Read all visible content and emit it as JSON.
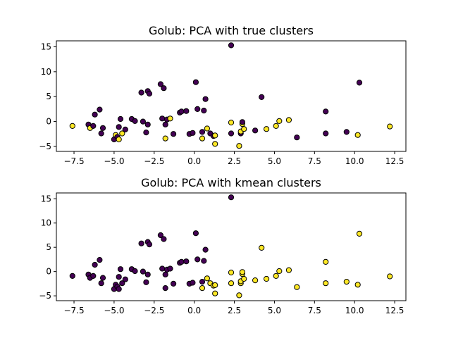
{
  "chart_data": [
    {
      "type": "scatter",
      "title": "Golub: PCA with true clusters",
      "xlabel": "",
      "ylabel": "",
      "xlim": [
        -8.6,
        13.2
      ],
      "ylim": [
        -6.0,
        16.2
      ],
      "xticks": [
        -7.5,
        -5.0,
        -2.5,
        0.0,
        2.5,
        5.0,
        7.5,
        10.0,
        12.5
      ],
      "xtick_labels": [
        "−7.5",
        "−5.0",
        "−2.5",
        "0.0",
        "2.5",
        "5.0",
        "7.5",
        "10.0",
        "12.5"
      ],
      "yticks": [
        -5,
        0,
        5,
        10,
        15
      ],
      "ytick_labels": [
        "−5",
        "0",
        "5",
        "10",
        "15"
      ],
      "grid": false,
      "colors": {
        "cluster_0": "#440154",
        "cluster_1": "#fde725"
      },
      "points": [
        [
          -7.6,
          -0.9,
          1
        ],
        [
          -6.6,
          -0.6,
          0
        ],
        [
          -6.5,
          -1.3,
          1
        ],
        [
          -6.3,
          -0.9,
          0
        ],
        [
          -6.2,
          1.4,
          0
        ],
        [
          -5.9,
          2.4,
          0
        ],
        [
          -5.8,
          -2.4,
          0
        ],
        [
          -5.7,
          -1.3,
          0
        ],
        [
          -5.0,
          -3.6,
          0
        ],
        [
          -4.9,
          -2.7,
          1
        ],
        [
          -4.8,
          -3.1,
          0
        ],
        [
          -4.7,
          -3.6,
          1
        ],
        [
          -4.7,
          -1.1,
          0
        ],
        [
          -4.6,
          0.5,
          0
        ],
        [
          -4.5,
          -2.4,
          1
        ],
        [
          -4.3,
          -1.6,
          0
        ],
        [
          -3.9,
          0.5,
          0
        ],
        [
          -3.7,
          0.1,
          0
        ],
        [
          -3.3,
          5.8,
          0
        ],
        [
          -3.2,
          0.0,
          0
        ],
        [
          -3.0,
          -2.2,
          0
        ],
        [
          -2.9,
          -0.6,
          0
        ],
        [
          -2.9,
          6.1,
          0
        ],
        [
          -2.8,
          5.6,
          0
        ],
        [
          -2.1,
          7.5,
          0
        ],
        [
          -2.0,
          0.6,
          0
        ],
        [
          -1.9,
          6.7,
          0
        ],
        [
          -1.8,
          -3.4,
          1
        ],
        [
          -1.8,
          -0.6,
          0
        ],
        [
          -1.7,
          0.4,
          0
        ],
        [
          -1.5,
          0.6,
          1
        ],
        [
          -1.3,
          -2.5,
          0
        ],
        [
          -0.9,
          1.8,
          0
        ],
        [
          -0.8,
          2.0,
          0
        ],
        [
          -0.5,
          2.1,
          0
        ],
        [
          -0.3,
          -2.5,
          0
        ],
        [
          -0.1,
          -2.3,
          0
        ],
        [
          0.1,
          7.9,
          0
        ],
        [
          0.2,
          2.5,
          0
        ],
        [
          0.5,
          -3.4,
          1
        ],
        [
          0.5,
          -2.1,
          0
        ],
        [
          0.6,
          2.2,
          0
        ],
        [
          0.7,
          4.5,
          0
        ],
        [
          0.8,
          -1.4,
          1
        ],
        [
          1.0,
          -2.4,
          0
        ],
        [
          1.2,
          -2.9,
          0
        ],
        [
          1.3,
          -2.8,
          1
        ],
        [
          1.3,
          -4.5,
          1
        ],
        [
          2.3,
          15.3,
          0
        ],
        [
          2.3,
          -0.2,
          1
        ],
        [
          2.3,
          -2.4,
          0
        ],
        [
          2.8,
          -4.9,
          1
        ],
        [
          2.9,
          -2.4,
          0
        ],
        [
          2.9,
          -2.0,
          1
        ],
        [
          3.0,
          -0.5,
          1
        ],
        [
          3.0,
          -0.1,
          0
        ],
        [
          3.1,
          -1.5,
          1
        ],
        [
          3.8,
          -1.8,
          0
        ],
        [
          4.2,
          4.9,
          0
        ],
        [
          4.5,
          -1.5,
          1
        ],
        [
          5.1,
          -0.9,
          1
        ],
        [
          5.3,
          0.1,
          1
        ],
        [
          5.9,
          0.3,
          1
        ],
        [
          6.4,
          -3.2,
          0
        ],
        [
          8.2,
          2.0,
          0
        ],
        [
          8.2,
          -2.4,
          0
        ],
        [
          9.5,
          -2.1,
          0
        ],
        [
          10.2,
          -2.7,
          1
        ],
        [
          10.3,
          7.8,
          0
        ],
        [
          12.2,
          -1.0,
          1
        ]
      ]
    },
    {
      "type": "scatter",
      "title": "Golub: PCA with kmean clusters",
      "xlabel": "",
      "ylabel": "",
      "xlim": [
        -8.6,
        13.2
      ],
      "ylim": [
        -6.0,
        16.2
      ],
      "xticks": [
        -7.5,
        -5.0,
        -2.5,
        0.0,
        2.5,
        5.0,
        7.5,
        10.0,
        12.5
      ],
      "xtick_labels": [
        "−7.5",
        "−5.0",
        "−2.5",
        "0.0",
        "2.5",
        "5.0",
        "7.5",
        "10.0",
        "12.5"
      ],
      "yticks": [
        -5,
        0,
        5,
        10,
        15
      ],
      "ytick_labels": [
        "−5",
        "0",
        "5",
        "10",
        "15"
      ],
      "grid": false,
      "colors": {
        "cluster_0": "#440154",
        "cluster_1": "#fde725"
      },
      "points": [
        [
          -7.6,
          -0.9,
          0
        ],
        [
          -6.6,
          -0.6,
          0
        ],
        [
          -6.5,
          -1.3,
          0
        ],
        [
          -6.3,
          -0.9,
          0
        ],
        [
          -6.2,
          1.4,
          0
        ],
        [
          -5.9,
          2.4,
          0
        ],
        [
          -5.8,
          -2.4,
          0
        ],
        [
          -5.7,
          -1.3,
          0
        ],
        [
          -5.0,
          -3.6,
          0
        ],
        [
          -4.9,
          -2.7,
          0
        ],
        [
          -4.8,
          -3.1,
          0
        ],
        [
          -4.7,
          -3.6,
          0
        ],
        [
          -4.7,
          -1.1,
          0
        ],
        [
          -4.6,
          0.5,
          0
        ],
        [
          -4.5,
          -2.4,
          0
        ],
        [
          -4.3,
          -1.6,
          0
        ],
        [
          -3.9,
          0.5,
          0
        ],
        [
          -3.7,
          0.1,
          0
        ],
        [
          -3.3,
          5.8,
          0
        ],
        [
          -3.2,
          0.0,
          0
        ],
        [
          -3.0,
          -2.2,
          0
        ],
        [
          -2.9,
          -0.6,
          0
        ],
        [
          -2.9,
          6.1,
          0
        ],
        [
          -2.8,
          5.6,
          0
        ],
        [
          -2.1,
          7.5,
          0
        ],
        [
          -2.0,
          0.6,
          0
        ],
        [
          -1.9,
          6.7,
          0
        ],
        [
          -1.8,
          -3.4,
          0
        ],
        [
          -1.8,
          -0.6,
          0
        ],
        [
          -1.7,
          0.4,
          0
        ],
        [
          -1.5,
          0.6,
          0
        ],
        [
          -1.3,
          -2.5,
          0
        ],
        [
          -0.9,
          1.8,
          0
        ],
        [
          -0.8,
          2.0,
          0
        ],
        [
          -0.5,
          2.1,
          0
        ],
        [
          -0.3,
          -2.5,
          0
        ],
        [
          -0.1,
          -2.3,
          0
        ],
        [
          0.1,
          7.9,
          0
        ],
        [
          0.2,
          2.5,
          0
        ],
        [
          0.5,
          -3.4,
          1
        ],
        [
          0.5,
          -2.1,
          0
        ],
        [
          0.6,
          2.2,
          0
        ],
        [
          0.7,
          4.5,
          0
        ],
        [
          0.8,
          -1.4,
          1
        ],
        [
          1.0,
          -2.4,
          1
        ],
        [
          1.2,
          -2.9,
          1
        ],
        [
          1.3,
          -2.8,
          1
        ],
        [
          1.3,
          -4.5,
          1
        ],
        [
          2.3,
          15.3,
          0
        ],
        [
          2.3,
          -0.2,
          1
        ],
        [
          2.3,
          -2.4,
          1
        ],
        [
          2.8,
          -4.9,
          1
        ],
        [
          2.9,
          -2.4,
          1
        ],
        [
          2.9,
          -2.0,
          1
        ],
        [
          3.0,
          -0.5,
          1
        ],
        [
          3.0,
          -0.1,
          1
        ],
        [
          3.1,
          -1.5,
          1
        ],
        [
          3.8,
          -1.8,
          1
        ],
        [
          4.2,
          4.9,
          1
        ],
        [
          4.5,
          -1.5,
          1
        ],
        [
          5.1,
          -0.9,
          1
        ],
        [
          5.3,
          0.1,
          1
        ],
        [
          5.9,
          0.3,
          1
        ],
        [
          6.4,
          -3.2,
          1
        ],
        [
          8.2,
          2.0,
          1
        ],
        [
          8.2,
          -2.4,
          1
        ],
        [
          9.5,
          -2.1,
          1
        ],
        [
          10.2,
          -2.7,
          1
        ],
        [
          10.3,
          7.8,
          1
        ],
        [
          12.2,
          -1.0,
          1
        ]
      ]
    }
  ]
}
